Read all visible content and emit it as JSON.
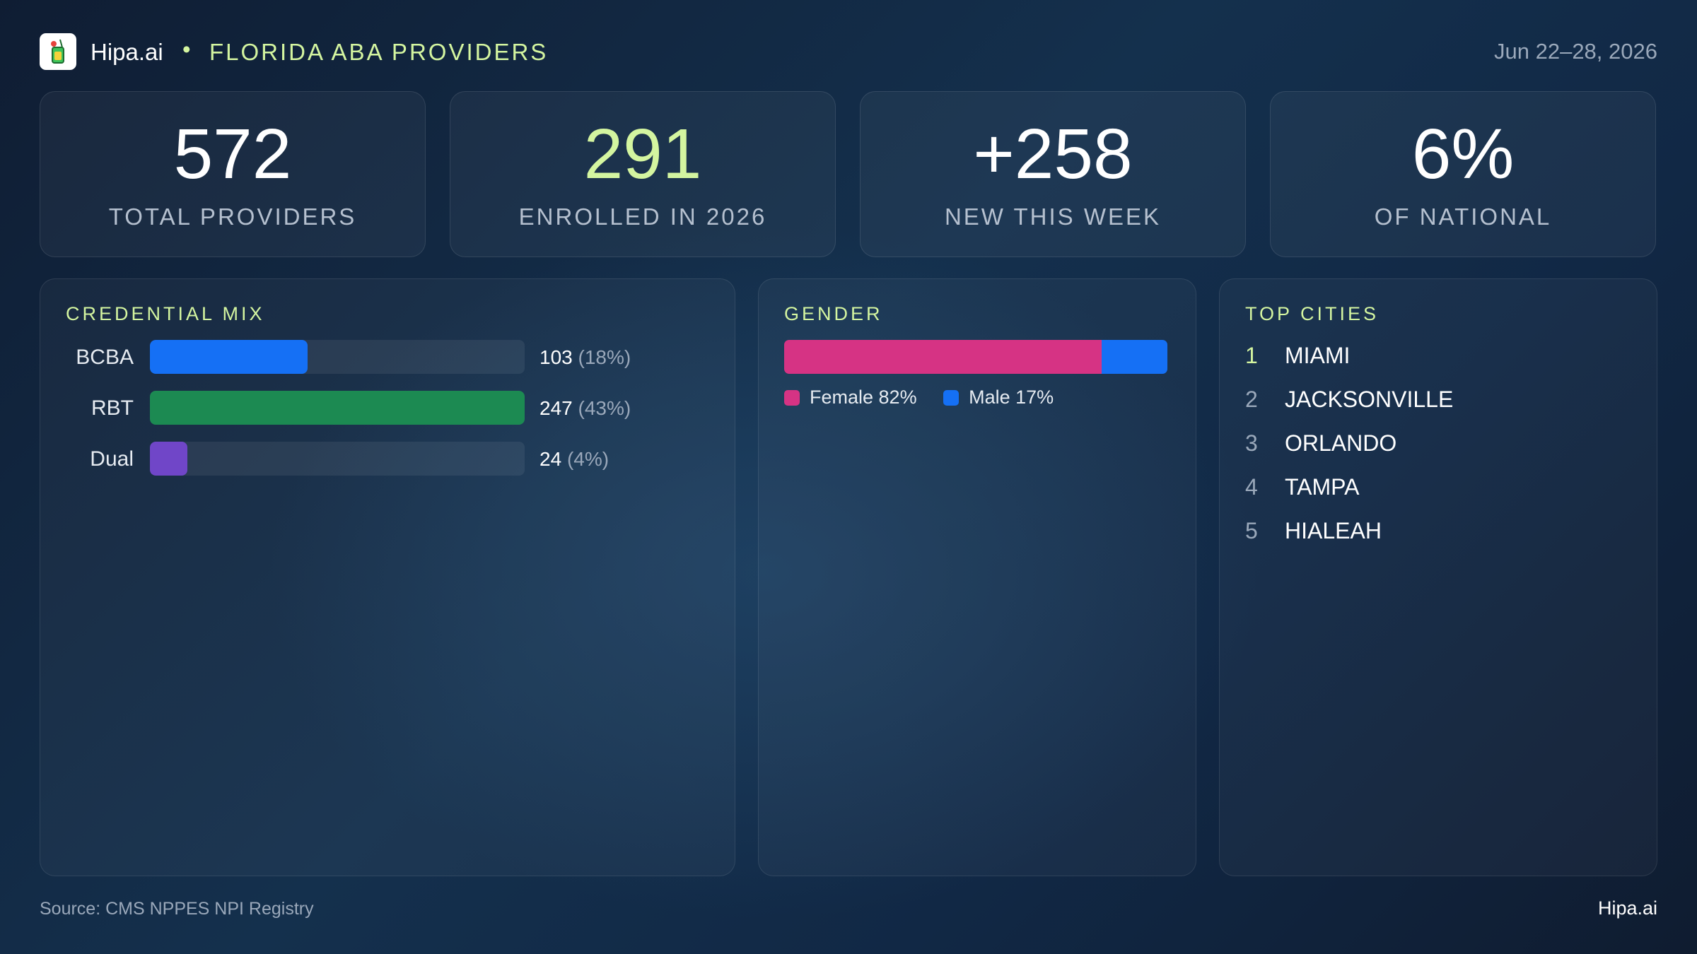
{
  "header": {
    "brand": "Hipa.ai",
    "separator": "•",
    "title": "FLORIDA ABA PROVIDERS",
    "date_range": "Jun 22–28, 2026"
  },
  "kpis": [
    {
      "value": "572",
      "label": "TOTAL PROVIDERS",
      "color": "#ffffff"
    },
    {
      "value": "291",
      "label": "ENROLLED IN 2026",
      "color": "#d4f5a0"
    },
    {
      "value": "+258",
      "label": "NEW THIS WEEK",
      "color": "#ffffff"
    },
    {
      "value": "6%",
      "label": "OF NATIONAL",
      "color": "#ffffff"
    }
  ],
  "credential_mix": {
    "title": "CREDENTIAL MIX",
    "rows": [
      {
        "label": "BCBA",
        "count": "103",
        "pct_text": "(18%)",
        "fill": 0.42,
        "color": "#1570f5"
      },
      {
        "label": "RBT",
        "count": "247",
        "pct_text": "(43%)",
        "fill": 1.0,
        "color": "#1c8a52"
      },
      {
        "label": "Dual",
        "count": "24",
        "pct_text": "(4%)",
        "fill": 0.1,
        "color": "#7046c8"
      }
    ]
  },
  "gender": {
    "title": "GENDER",
    "segments": [
      {
        "label": "Female 82%",
        "share": 82,
        "color": "#d63384"
      },
      {
        "label": "Male 17%",
        "share": 17,
        "color": "#1570f5"
      }
    ]
  },
  "top_cities": {
    "title": "TOP CITIES",
    "items": [
      {
        "rank": "1",
        "name": "MIAMI"
      },
      {
        "rank": "2",
        "name": "JACKSONVILLE"
      },
      {
        "rank": "3",
        "name": "ORLANDO"
      },
      {
        "rank": "4",
        "name": "TAMPA"
      },
      {
        "rank": "5",
        "name": "HIALEAH"
      }
    ]
  },
  "footer": {
    "source": "Source: CMS NPPES NPI Registry",
    "brand": "Hipa.ai"
  }
}
